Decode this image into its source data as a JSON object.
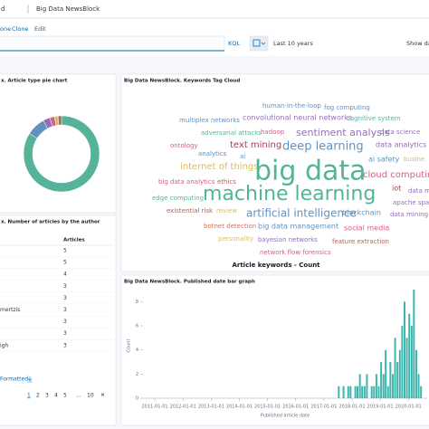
{
  "header": {
    "app": "d",
    "dashboard": "Big Data NewsBlock"
  },
  "toolbar": [
    "one",
    "Clone",
    "Edit"
  ],
  "query": {
    "language": "KQL",
    "time_range": "Last 10 years",
    "show": "Show da"
  },
  "pie_panel": {
    "title": "x. Article type pie chart",
    "slices": [
      {
        "value": 84,
        "color": "#54b399"
      },
      {
        "value": 8,
        "color": "#6092c0"
      },
      {
        "value": 3,
        "color": "#9170b8"
      },
      {
        "value": 2,
        "color": "#d36086"
      },
      {
        "value": 1.5,
        "color": "#d6bf57"
      },
      {
        "value": 1.5,
        "color": "#aa6556"
      }
    ]
  },
  "table_panel": {
    "title": "x. Number of articles by the author",
    "header": [
      null,
      "Articles"
    ],
    "rows": [
      [
        null,
        5
      ],
      [
        null,
        5
      ],
      [
        null,
        4
      ],
      [
        null,
        3
      ],
      [
        null,
        3
      ],
      [
        "mertzis",
        3
      ],
      [
        null,
        3
      ],
      [
        null,
        3
      ],
      [
        "igh",
        3
      ]
    ],
    "link": "Formatted",
    "pages": [
      1,
      2,
      3,
      4,
      5,
      "...",
      10
    ]
  },
  "cloud_panel": {
    "title": "Big Data NewsBlock. Keywords Tag Cloud",
    "words": [
      "human-in-the-loop",
      "fog computing",
      "multiplex networks",
      "convolutional neural networks",
      "cognitive system",
      "adversarial attacks",
      "hadoop",
      "sentiment analysis",
      "data science",
      "ontology",
      "text mining",
      "deep learning",
      "data analytics",
      "analytics",
      "ai",
      "ai safety",
      "busine",
      "internet of things",
      "big data",
      "cloud computing",
      "big data analytics",
      "ethics",
      "iot",
      "data m",
      "machine learning",
      "edge computing",
      "apache spa",
      "data mining",
      "existential risk",
      "review",
      "artificial intelligence",
      "blockchain",
      "botnet detection",
      "big data management",
      "social media",
      "personality",
      "bayesian networks",
      "feature extraction",
      "network flow forensics"
    ],
    "axis_title": "Article keywords - Count"
  },
  "bar_panel": {
    "type": "bar",
    "title": "Big Data NewsBlock. Published date bar graph",
    "x": [
      "2017-07-01",
      "2017-08-01",
      "2017-09-01",
      "2017-10-01",
      "2017-11-01",
      "2017-12-01",
      "2018-01-01",
      "2018-02-01",
      "2018-03-01",
      "2018-04-01",
      "2018-05-01",
      "2018-06-01",
      "2018-07-01",
      "2018-08-01",
      "2018-09-01",
      "2018-10-01",
      "2018-11-01",
      "2018-12-01",
      "2019-01-01",
      "2019-02-01",
      "2019-03-01",
      "2019-04-01",
      "2019-05-01",
      "2019-06-01",
      "2019-07-01",
      "2019-08-01",
      "2019-09-01",
      "2019-10-01",
      "2019-11-01",
      "2019-12-01",
      "2020-01-01",
      "2020-02-01",
      "2020-03-01",
      "2020-04-01",
      "2020-05-01",
      "2020-06-01"
    ],
    "values": [
      1,
      0,
      1,
      0,
      1,
      1,
      0,
      1,
      1,
      2,
      1,
      1,
      2,
      0,
      1,
      1,
      2,
      1,
      3,
      2,
      4,
      1,
      3,
      2,
      5,
      3,
      4,
      6,
      8,
      5,
      7,
      6,
      9,
      4,
      2,
      1
    ],
    "color": "#3fb6ad",
    "ylim": [
      0,
      9
    ],
    "yticks": [
      0,
      2,
      4,
      6,
      8
    ],
    "xlim": [
      "2010-08-01",
      "2020-09-01"
    ],
    "xticks": [
      "2011-01-01",
      "2012-01-01",
      "2013-01-01",
      "2014-01-01",
      "2015-01-01",
      "2016-01-01",
      "2017-01-01",
      "2018-01-01",
      "2019-01-01",
      "2020-01-01"
    ],
    "xlabel": "Published article date",
    "ylabel": "Count"
  }
}
